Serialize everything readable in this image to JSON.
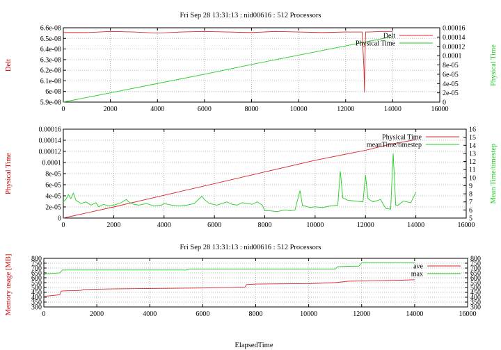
{
  "chart_data": [
    {
      "type": "line",
      "title": "Fri Sep 28 13:31:13 : nid00616 : 512 Processors",
      "xlabel": "",
      "ylabel": "Delt",
      "y2label": "Physical Time",
      "xlim": [
        0,
        16000
      ],
      "ylim": [
        5.9e-08,
        6.6e-08
      ],
      "y2lim": [
        0,
        0.00016
      ],
      "xticks": [
        "0",
        "2000",
        "4000",
        "6000",
        "8000",
        "10000",
        "12000",
        "14000",
        "16000"
      ],
      "yticks": [
        "5.9e-08",
        "6e-08",
        "6.1e-08",
        "6.2e-08",
        "6.3e-08",
        "6.4e-08",
        "6.5e-08",
        "6.6e-08"
      ],
      "y2ticks": [
        "0",
        "2e-05",
        "4e-05",
        "6e-05",
        "8e-05",
        "0.0001",
        "0.00012",
        "0.00014",
        "0.00016"
      ],
      "grid": true,
      "legend_position": "top-right",
      "series": [
        {
          "name": "Delt",
          "axis": "left",
          "color": "#d62728",
          "x": [
            0,
            1000,
            2000,
            3000,
            4000,
            5000,
            6000,
            7000,
            8000,
            9000,
            10000,
            11000,
            12000,
            12700,
            12780,
            12800,
            12820,
            12850,
            13000,
            13500,
            14000
          ],
          "y": [
            6.555e-08,
            6.555e-08,
            6.565e-08,
            6.56e-08,
            6.55e-08,
            6.56e-08,
            6.565e-08,
            6.56e-08,
            6.555e-08,
            6.565e-08,
            6.56e-08,
            6.555e-08,
            6.56e-08,
            6.56e-08,
            6.2e-08,
            5.99e-08,
            6.3e-08,
            6.56e-08,
            6.56e-08,
            6.565e-08,
            6.565e-08
          ]
        },
        {
          "name": "Physical Time",
          "axis": "right",
          "color": "#22cc22",
          "x": [
            0,
            2000,
            4000,
            6000,
            8000,
            10000,
            12000,
            14000
          ],
          "y": [
            0,
            2e-05,
            4e-05,
            6e-05,
            8.1e-05,
            0.000101,
            0.000121,
            0.000141
          ]
        }
      ]
    },
    {
      "type": "line",
      "title": "",
      "xlabel": "",
      "ylabel": "Physical Time",
      "y2label": "Mean Time/timestep",
      "xlim": [
        0,
        16000
      ],
      "ylim": [
        0,
        0.00016
      ],
      "y2lim": [
        5,
        16
      ],
      "xticks": [
        "0",
        "2000",
        "4000",
        "6000",
        "8000",
        "10000",
        "12000",
        "14000",
        "16000"
      ],
      "yticks": [
        "0",
        "2e-05",
        "4e-05",
        "6e-05",
        "8e-05",
        "0.0001",
        "0.00012",
        "0.00014",
        "0.00016"
      ],
      "y2ticks": [
        "5",
        "6",
        "7",
        "8",
        "9",
        "10",
        "11",
        "12",
        "13",
        "14",
        "15",
        "16"
      ],
      "grid": true,
      "legend_position": "top-right",
      "series": [
        {
          "name": "Physical Time",
          "axis": "left",
          "color": "#d62728",
          "x": [
            0,
            2000,
            4000,
            6000,
            8000,
            10000,
            12000,
            13000,
            14000
          ],
          "y": [
            0,
            2e-05,
            4.1e-05,
            6.2e-05,
            8.3e-05,
            0.000104,
            0.000122,
            0.000133,
            0.000141
          ]
        },
        {
          "name": "meanTime/timestep",
          "axis": "right",
          "color": "#22cc22",
          "x": [
            0,
            100,
            200,
            300,
            400,
            500,
            700,
            900,
            1100,
            1300,
            1400,
            1600,
            1800,
            2000,
            2300,
            2500,
            2600,
            2800,
            3000,
            3300,
            3600,
            3900,
            4000,
            4300,
            4600,
            4900,
            5200,
            5500,
            5600,
            5800,
            6100,
            6300,
            6500,
            6700,
            6900,
            7100,
            7300,
            7500,
            7700,
            7900,
            8000,
            8200,
            8500,
            8800,
            9000,
            9200,
            9400,
            9500,
            9600,
            9800,
            10000,
            10300,
            10600,
            10900,
            11000,
            11100,
            11300,
            11600,
            11900,
            12000,
            12100,
            12300,
            12600,
            12800,
            13000,
            13100,
            13200,
            13300,
            13500,
            13800,
            14000
          ],
          "y": [
            7.0,
            7.3,
            7.9,
            7.4,
            8.1,
            7.2,
            6.8,
            7.0,
            6.6,
            6.9,
            6.4,
            6.7,
            6.5,
            6.6,
            6.9,
            7.3,
            7.0,
            6.7,
            6.6,
            6.8,
            6.5,
            6.6,
            6.8,
            6.6,
            6.5,
            6.6,
            6.8,
            7.7,
            7.3,
            6.8,
            6.6,
            6.8,
            7.0,
            6.7,
            6.6,
            6.9,
            6.8,
            6.7,
            7.0,
            6.6,
            5.9,
            5.9,
            5.8,
            6.0,
            5.9,
            6.0,
            8.4,
            6.5,
            6.5,
            6.3,
            6.4,
            6.3,
            6.5,
            6.6,
            10.8,
            7.5,
            7.2,
            7.1,
            7.0,
            10.3,
            7.4,
            7.0,
            7.3,
            6.2,
            6.1,
            13.0,
            6.6,
            6.6,
            7.1,
            6.9,
            8.2
          ]
        }
      ]
    },
    {
      "type": "line",
      "title": "Fri Sep 28 13:31:13 : nid00616 : 512 Processors",
      "xlabel": "ElapsedTime",
      "ylabel": "Memory usage [MB]",
      "y2label": "",
      "xlim": [
        0,
        16000
      ],
      "ylim": [
        300,
        800
      ],
      "y2lim": [
        300,
        800
      ],
      "xticks": [
        "0",
        "2000",
        "4000",
        "6000",
        "8000",
        "10000",
        "12000",
        "14000",
        "16000"
      ],
      "yticks": [
        "300",
        "350",
        "400",
        "450",
        "500",
        "550",
        "600",
        "650",
        "700",
        "750",
        "800"
      ],
      "y2ticks": [
        "300",
        "350",
        "400",
        "450",
        "500",
        "550",
        "600",
        "650",
        "700",
        "750",
        "800"
      ],
      "grid": true,
      "legend_position": "top-right",
      "series": [
        {
          "name": "ave",
          "axis": "left",
          "color": "#d62728",
          "x": [
            0,
            50,
            600,
            650,
            700,
            1400,
            1500,
            2500,
            4000,
            6000,
            7600,
            7650,
            8000,
            9000,
            10000,
            11000,
            11500,
            12500,
            13500,
            14000
          ],
          "y": [
            395,
            410,
            425,
            460,
            465,
            470,
            480,
            485,
            490,
            495,
            505,
            530,
            535,
            538,
            540,
            550,
            565,
            570,
            575,
            580
          ]
        },
        {
          "name": "max",
          "axis": "left",
          "color": "#22cc22",
          "x": [
            0,
            50,
            600,
            700,
            1500,
            5400,
            5500,
            11000,
            11100,
            11900,
            12000,
            14000
          ],
          "y": [
            620,
            640,
            650,
            680,
            680,
            680,
            690,
            690,
            715,
            720,
            755,
            755
          ]
        }
      ]
    }
  ]
}
